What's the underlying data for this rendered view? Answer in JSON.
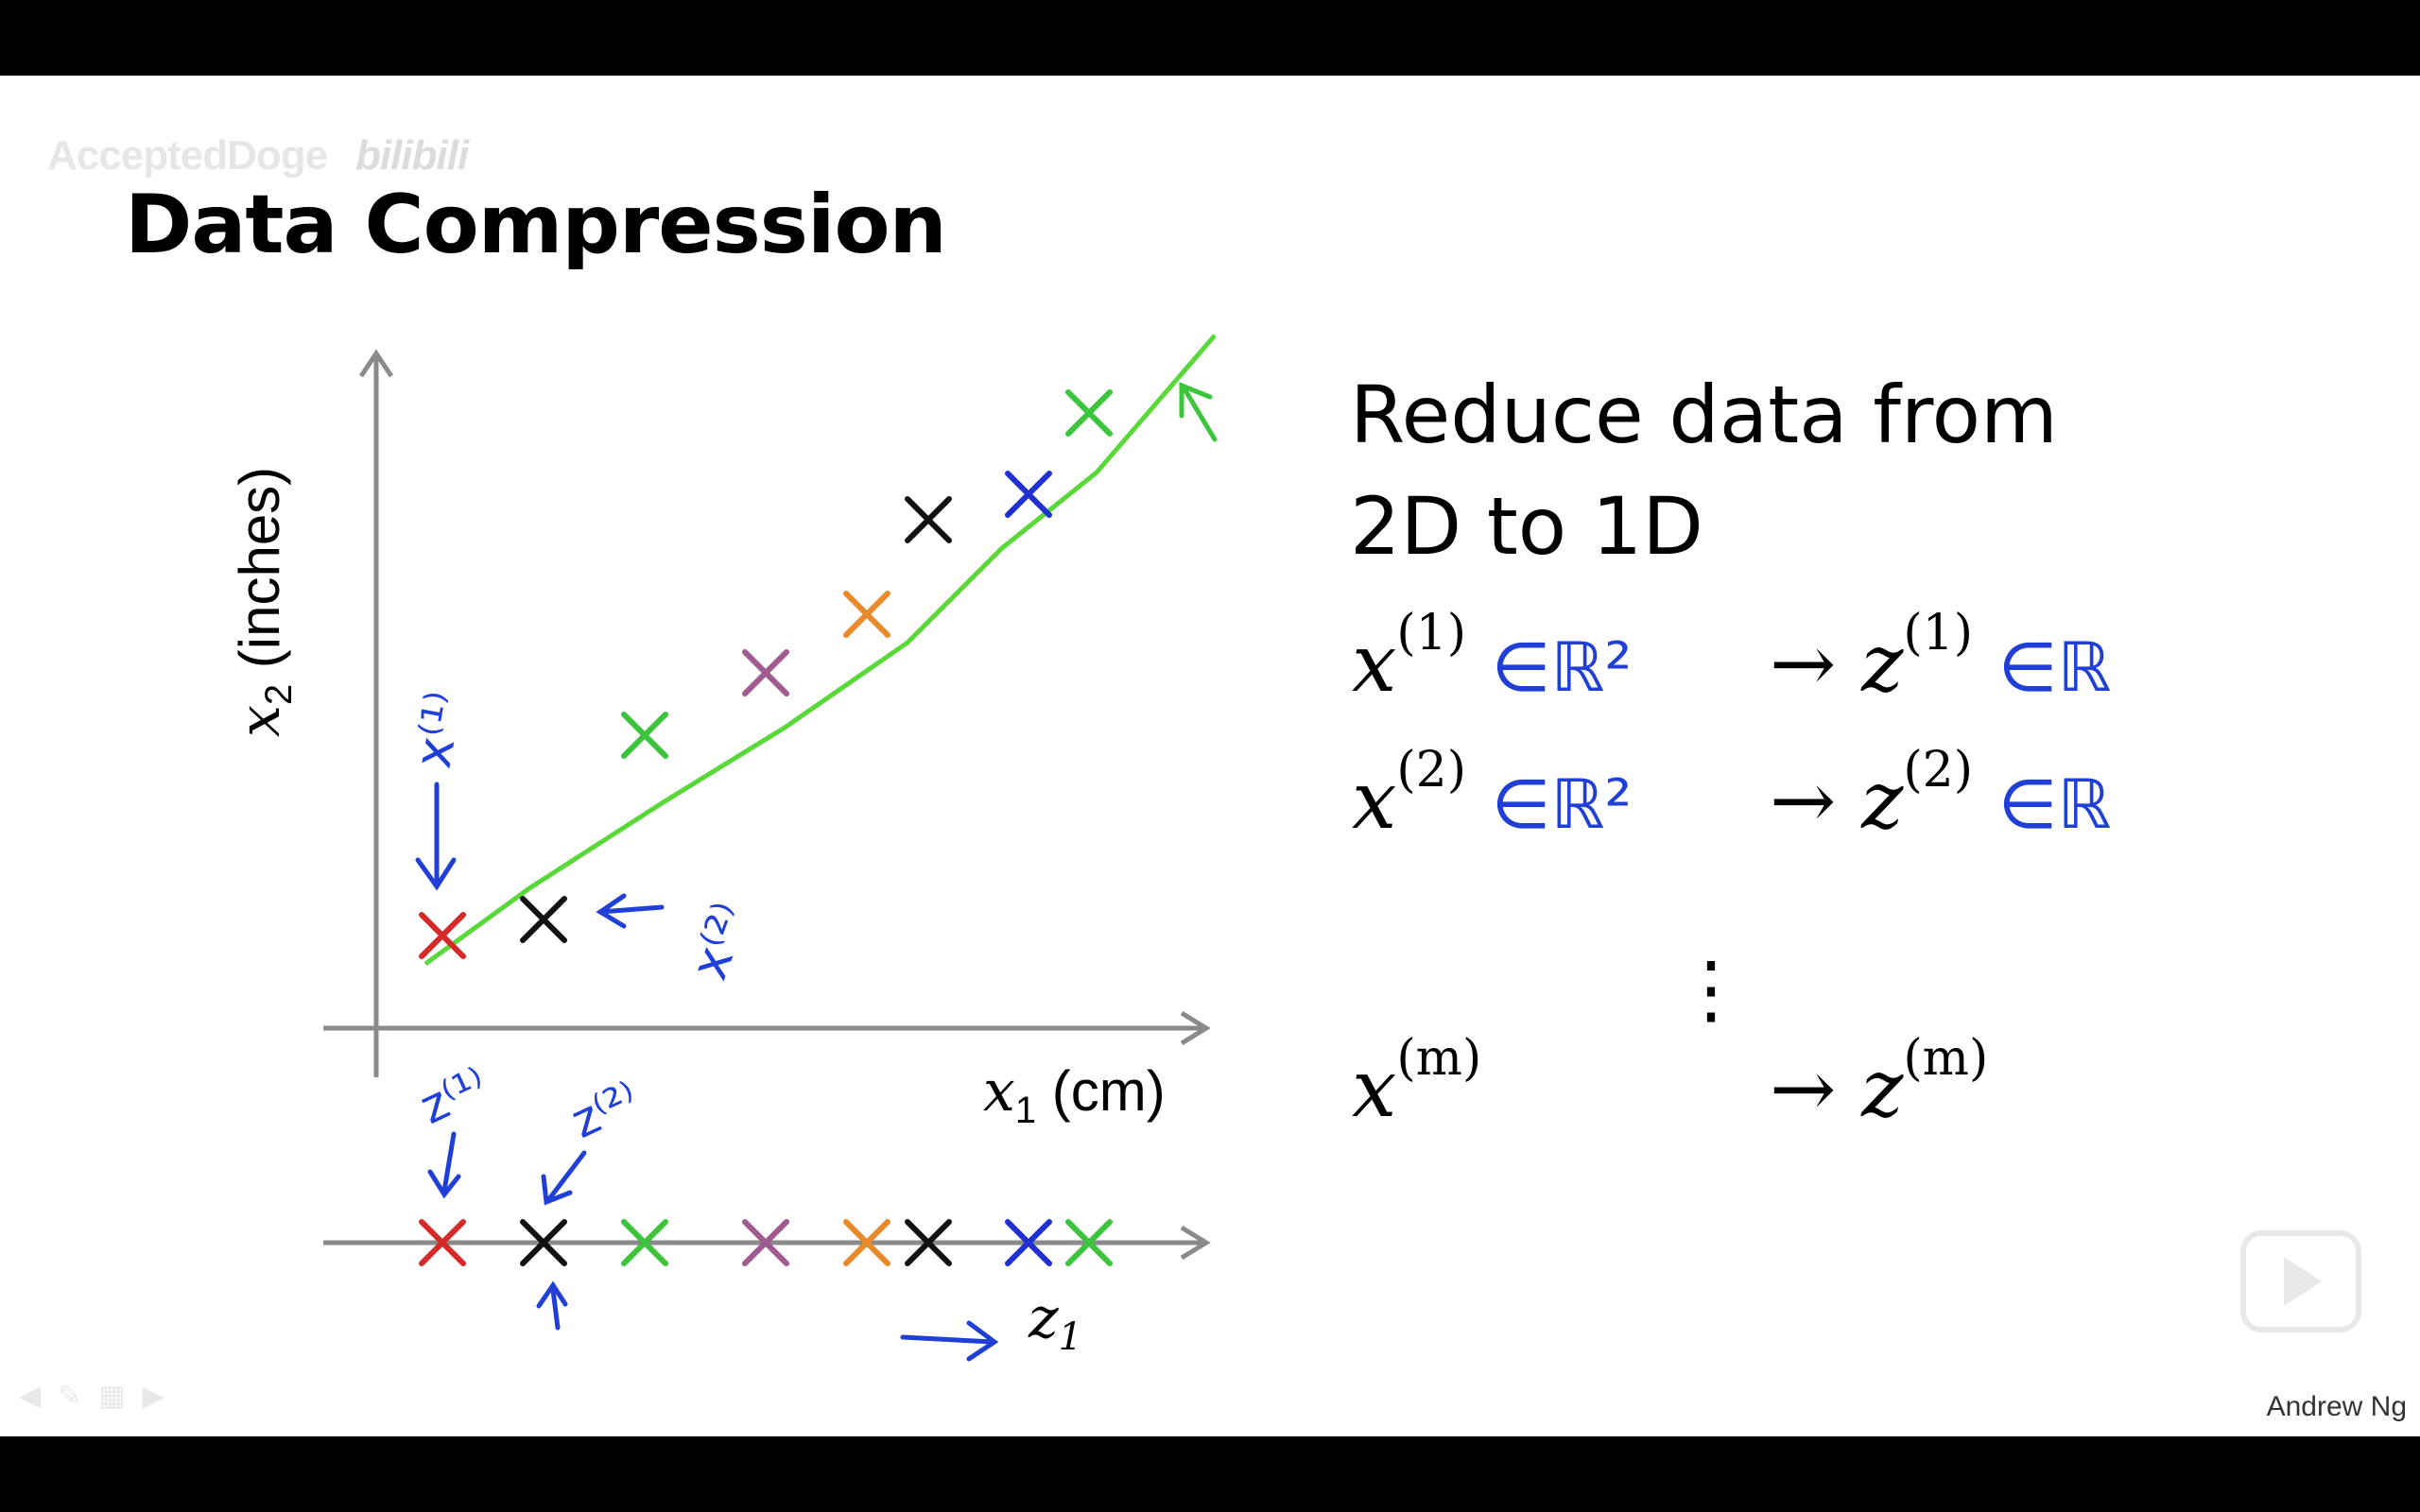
{
  "slide": {
    "watermark": "AcceptedDoge",
    "watermark_logo": "bilibili",
    "title": "Data Compression",
    "author": "Andrew Ng",
    "reduce_line1": "Reduce data from",
    "reduce_line2": "2D to 1D"
  },
  "plot": {
    "y_axis_var": "x",
    "y_axis_sub": "2",
    "y_axis_unit": "(inches)",
    "x_axis_var": "x",
    "x_axis_sub": "1",
    "x_axis_unit": "(cm)",
    "z_axis_var": "z",
    "z_axis_sub": "1"
  },
  "mapping": [
    {
      "x": "x",
      "x_sup": "(1)",
      "x_mark": "∈ℝ²",
      "z": "z",
      "z_sup": "(1)",
      "z_mark": "∈ℝ"
    },
    {
      "x": "x",
      "x_sup": "(2)",
      "x_mark": "∈ℝ²",
      "z": "z",
      "z_sup": "(2)",
      "z_mark": "∈ℝ"
    },
    {
      "x": "x",
      "x_sup": "(m)",
      "x_mark": "",
      "z": "z",
      "z_sup": "(m)",
      "z_mark": ""
    }
  ],
  "arrow_symbol": "→",
  "vdots": "⋮",
  "annotations": {
    "x1": "x⁽¹⁾",
    "x2": "x⁽²⁾",
    "z1": "z⁽¹⁾",
    "z2": "z⁽²⁾"
  },
  "colors": {
    "red": "#d42a2a",
    "black": "#111111",
    "green": "#3cc43c",
    "purple": "#a05a90",
    "orange": "#e8892a",
    "blue": "#1f2fd0",
    "line": "#5ad83a",
    "hand": "#1f3fd6"
  },
  "points": [
    {
      "color": "red"
    },
    {
      "color": "black"
    },
    {
      "color": "green"
    },
    {
      "color": "purple"
    },
    {
      "color": "orange"
    },
    {
      "color": "black"
    },
    {
      "color": "blue"
    },
    {
      "color": "green"
    }
  ]
}
